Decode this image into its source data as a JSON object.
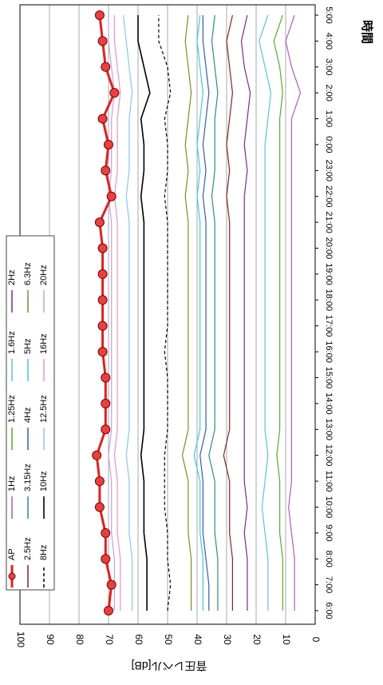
{
  "chart_data": {
    "type": "line",
    "orientation": "rotated-90-clockwise",
    "xlabel": "時間",
    "ylabel": "音圧レベル[dB]",
    "ylim": [
      0,
      100
    ],
    "yticks": [
      0,
      10,
      20,
      30,
      40,
      50,
      60,
      70,
      80,
      90,
      100
    ],
    "grid": true,
    "legend_placement": "top-left (rotated)",
    "categories": [
      "6:00",
      "7:00",
      "8:00",
      "9:00",
      "10:00",
      "11:00",
      "12:00",
      "13:00",
      "14:00",
      "15:00",
      "16:00",
      "17:00",
      "18:00",
      "19:00",
      "20:00",
      "21:00",
      "22:00",
      "23:00",
      "0:00",
      "1:00",
      "2:00",
      "3:00",
      "4:00",
      "5:00"
    ],
    "series": [
      {
        "name": "AP",
        "color": "#e02020",
        "width": 3,
        "marker": true,
        "dash": "",
        "values": [
          70,
          69,
          71,
          71,
          73,
          73,
          74,
          71,
          71,
          71,
          72,
          72,
          72,
          72,
          72,
          73,
          69,
          71,
          70,
          72,
          68,
          71,
          72,
          73
        ]
      },
      {
        "name": "1Hz",
        "color": "#b05cb8",
        "width": 1.2,
        "dash": "",
        "values": [
          7,
          7,
          7,
          8,
          9,
          8,
          8,
          8,
          8,
          8,
          8,
          8,
          8,
          8,
          8,
          8,
          8,
          8,
          8,
          8,
          5,
          8,
          10,
          7
        ]
      },
      {
        "name": "1.25Hz",
        "color": "#5aab2e",
        "width": 1.2,
        "dash": "",
        "values": [
          11,
          11,
          11,
          12,
          12,
          12,
          13,
          12,
          12,
          12,
          12,
          12,
          12,
          12,
          12,
          12,
          12,
          12,
          12,
          12,
          11,
          12,
          14,
          11
        ]
      },
      {
        "name": "1.6Hz",
        "color": "#5cc4cf",
        "width": 1.2,
        "dash": "",
        "values": [
          16,
          16,
          16,
          17,
          18,
          17,
          16,
          17,
          17,
          17,
          17,
          17,
          17,
          17,
          17,
          17,
          17,
          17,
          17,
          16,
          15,
          17,
          19,
          16
        ]
      },
      {
        "name": "2Hz",
        "color": "#7b2a8c",
        "width": 1.2,
        "dash": "",
        "values": [
          23,
          23,
          23,
          24,
          23,
          24,
          24,
          24,
          24,
          24,
          24,
          24,
          24,
          24,
          24,
          24,
          24,
          23,
          24,
          23,
          22,
          24,
          25,
          23
        ]
      },
      {
        "name": "2.5Hz",
        "color": "#8c2020",
        "width": 1.2,
        "dash": "",
        "values": [
          28,
          28,
          28,
          29,
          29,
          29,
          31,
          29,
          29,
          29,
          29,
          29,
          29,
          29,
          29,
          29,
          30,
          29,
          30,
          29,
          28,
          29,
          30,
          28
        ]
      },
      {
        "name": "3.15Hz",
        "color": "#2e8a8a",
        "width": 1.2,
        "dash": "",
        "values": [
          33,
          33,
          33,
          34,
          34,
          34,
          36,
          34,
          34,
          34,
          34,
          34,
          34,
          34,
          34,
          34,
          35,
          34,
          34,
          34,
          33,
          34,
          35,
          34
        ]
      },
      {
        "name": "4Hz",
        "color": "#3a5aa8",
        "width": 1.2,
        "dash": "",
        "values": [
          36,
          36,
          37,
          38,
          38,
          38,
          39,
          37,
          37,
          37,
          37,
          37,
          37,
          37,
          37,
          37,
          38,
          37,
          38,
          37,
          36,
          37,
          38,
          38
        ]
      },
      {
        "name": "5Hz",
        "color": "#40c8e0",
        "width": 1.2,
        "dash": "",
        "values": [
          38,
          38,
          38,
          39,
          39,
          39,
          41,
          39,
          39,
          39,
          39,
          39,
          39,
          39,
          39,
          39,
          40,
          39,
          40,
          39,
          38,
          39,
          40,
          39
        ]
      },
      {
        "name": "6.3Hz",
        "color": "#808a2a",
        "width": 1.2,
        "dash": "",
        "values": [
          42,
          42,
          42,
          43,
          43,
          43,
          45,
          43,
          43,
          43,
          43,
          43,
          43,
          43,
          43,
          43,
          44,
          43,
          44,
          43,
          42,
          43,
          44,
          43
        ]
      },
      {
        "name": "8Hz",
        "color": "#000000",
        "width": 1.2,
        "dash": "4,3",
        "values": [
          50,
          49,
          50,
          50,
          51,
          51,
          51,
          50,
          50,
          50,
          51,
          50,
          50,
          50,
          50,
          50,
          51,
          50,
          50,
          51,
          49,
          50,
          53,
          53
        ]
      },
      {
        "name": "10Hz",
        "color": "#000000",
        "width": 1.6,
        "dash": "",
        "values": [
          57,
          57,
          57,
          58,
          58,
          58,
          59,
          58,
          58,
          58,
          58,
          58,
          58,
          58,
          58,
          58,
          59,
          58,
          58,
          59,
          56,
          58,
          60,
          60
        ]
      },
      {
        "name": "12.5Hz",
        "color": "#88c8e8",
        "width": 1.2,
        "dash": "",
        "values": [
          62,
          62,
          62,
          63,
          63,
          63,
          64,
          63,
          63,
          63,
          63,
          63,
          63,
          63,
          63,
          63,
          64,
          63,
          63,
          63,
          62,
          63,
          64,
          65
        ]
      },
      {
        "name": "16Hz",
        "color": "#f090c0",
        "width": 1.2,
        "dash": "",
        "values": [
          66,
          66,
          66,
          67,
          67,
          67,
          68,
          67,
          67,
          67,
          67,
          67,
          67,
          67,
          67,
          67,
          68,
          67,
          67,
          67,
          66,
          67,
          68,
          68
        ]
      },
      {
        "name": "20Hz",
        "color": "#c8a0d8",
        "width": 1.2,
        "dash": "",
        "values": [
          68,
          68,
          68,
          69,
          69,
          69,
          70,
          69,
          69,
          69,
          69,
          69,
          69,
          69,
          69,
          69,
          70,
          69,
          69,
          69,
          68,
          69,
          70,
          70
        ]
      }
    ]
  }
}
